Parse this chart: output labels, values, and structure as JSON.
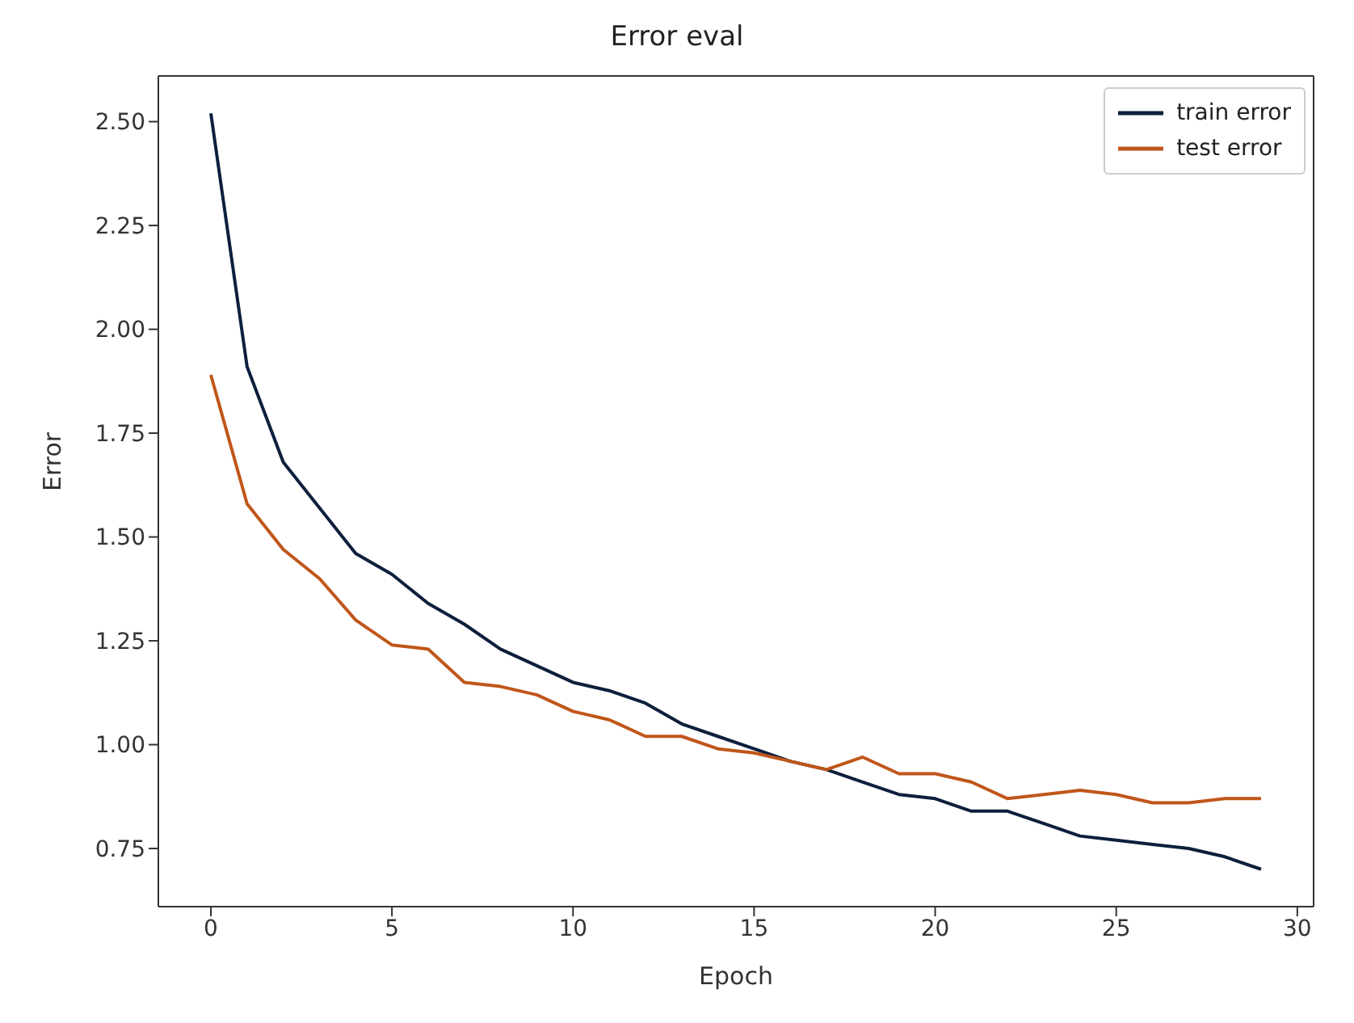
{
  "chart_data": {
    "type": "line",
    "title": "Error eval",
    "xlabel": "Epoch",
    "ylabel": "Error",
    "x": [
      0,
      1,
      2,
      3,
      4,
      5,
      6,
      7,
      8,
      9,
      10,
      11,
      12,
      13,
      14,
      15,
      16,
      17,
      18,
      19,
      20,
      21,
      22,
      23,
      24,
      25,
      26,
      27,
      28,
      29
    ],
    "series": [
      {
        "name": "train error",
        "color": "#0d1f3c",
        "values": [
          2.52,
          1.91,
          1.68,
          1.57,
          1.46,
          1.41,
          1.34,
          1.29,
          1.23,
          1.19,
          1.15,
          1.13,
          1.1,
          1.05,
          1.02,
          0.99,
          0.96,
          0.94,
          0.91,
          0.88,
          0.87,
          0.84,
          0.84,
          0.81,
          0.78,
          0.77,
          0.76,
          0.75,
          0.73,
          0.7
        ]
      },
      {
        "name": "test error",
        "color": "#c0561a",
        "values": [
          1.89,
          1.58,
          1.47,
          1.4,
          1.3,
          1.24,
          1.23,
          1.15,
          1.14,
          1.12,
          1.08,
          1.06,
          1.02,
          1.02,
          0.99,
          0.98,
          0.96,
          0.94,
          0.97,
          0.93,
          0.93,
          0.91,
          0.87,
          0.88,
          0.89,
          0.88,
          0.86,
          0.86,
          0.87,
          0.87
        ]
      }
    ],
    "xlim": [
      -1.45,
      30.45
    ],
    "xticks": [
      0,
      5,
      10,
      15,
      20,
      25,
      30
    ],
    "ylim": [
      0.61,
      2.61
    ],
    "yticks": [
      0.75,
      {
        "value": 1,
        "label": "1.00"
      },
      1.25,
      {
        "value": 1.5,
        "label": "1.50"
      },
      1.75,
      {
        "value": 2,
        "label": "2.00"
      },
      2.25,
      {
        "value": 2.5,
        "label": "2.50"
      }
    ],
    "grid": false,
    "legend": "top right",
    "marker": "none",
    "line_style": "solid"
  }
}
